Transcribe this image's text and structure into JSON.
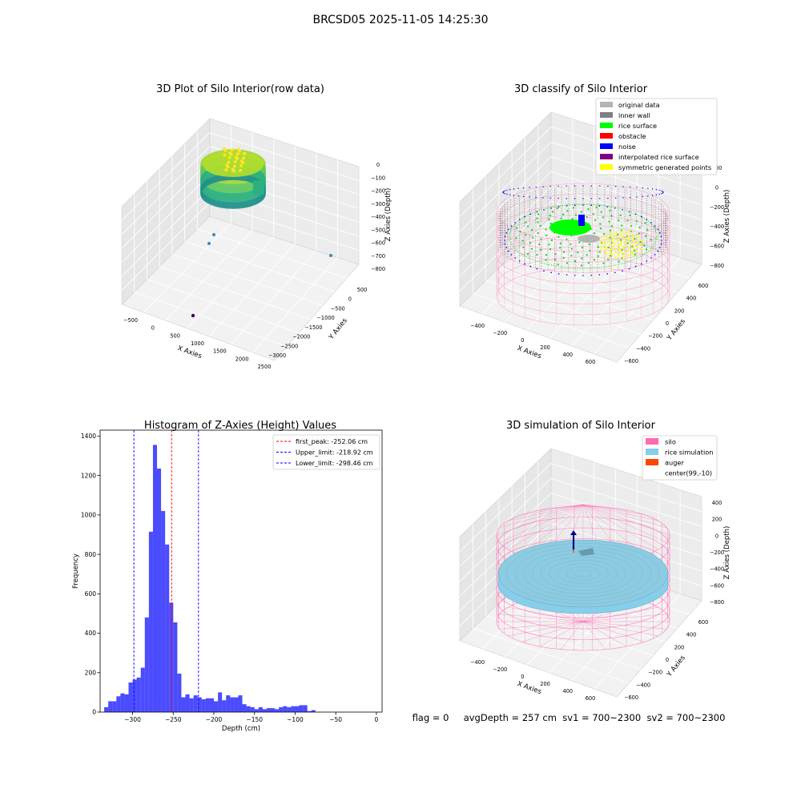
{
  "suptitle": "BRCSD05 2025-11-05 14:25:30",
  "panel1": {
    "title": "3D Plot of Silo Interior(row data)",
    "xlabel": "X Axies",
    "ylabel": "Y Axies",
    "zlabel": "Z Axies (Depth)",
    "xticks": [
      "−500",
      "0",
      "500",
      "1000",
      "1500",
      "2000",
      "2500"
    ],
    "yticks": [
      "500",
      "0",
      "−500",
      "−1000",
      "−1500",
      "−2000",
      "−2500",
      "−3000"
    ],
    "zticks": [
      "0",
      "−100",
      "−200",
      "−300",
      "−400",
      "−500",
      "−600",
      "−700",
      "−800"
    ]
  },
  "panel2": {
    "title": "3D classify of Silo Interior",
    "xlabel": "X Axies",
    "ylabel": "Y Axies",
    "zlabel": "Z Axies (Depth)",
    "xticks": [
      "−400",
      "−200",
      "0",
      "200",
      "400",
      "600"
    ],
    "yticks": [
      "600",
      "400",
      "200",
      "0",
      "−200",
      "−400",
      "−600"
    ],
    "zticks": [
      "200",
      "0",
      "−200",
      "−400",
      "−600",
      "−800"
    ],
    "legend": [
      {
        "label": "original data",
        "color": "#b4b4b4"
      },
      {
        "label": "inner wall",
        "color": "#808080"
      },
      {
        "label": "rice surface",
        "color": "#00ff00"
      },
      {
        "label": "obstacle",
        "color": "#ff0000"
      },
      {
        "label": "noise",
        "color": "#0000ff"
      },
      {
        "label": "interpolated rice surface",
        "color": "#800080"
      },
      {
        "label": "symmetric generated points",
        "color": "#ffff00"
      }
    ]
  },
  "panel4": {
    "title": "3D simulation of Silo Interior",
    "xlabel": "X Axies",
    "ylabel": "Y Axies",
    "zlabel": "Z Axies (Depth)",
    "xticks": [
      "−400",
      "−200",
      "0",
      "200",
      "400",
      "600"
    ],
    "yticks": [
      "600",
      "400",
      "200",
      "0",
      "−200",
      "−400",
      "−600"
    ],
    "zticks": [
      "400",
      "200",
      "0",
      "−200",
      "−400",
      "−600",
      "−800"
    ],
    "legend": [
      {
        "label": "silo",
        "color": "#ff69b4"
      },
      {
        "label": "rice simulation",
        "color": "#87ceeb"
      },
      {
        "label": "auger",
        "color": "#ff4500"
      },
      {
        "label": "center(99,-10)",
        "color": ""
      }
    ]
  },
  "footer": {
    "flag": "flag = 0",
    "avg": "avgDepth = 257 cm",
    "sv1": "sv1 = 700~2300",
    "sv2": "sv2 = 700~2300"
  },
  "chart_data": {
    "type": "bar",
    "title": "Histogram of Z-Axies (Height) Values",
    "xlabel": "Depth (cm)",
    "ylabel": "Frequency",
    "xlim": [
      -340,
      7
    ],
    "ylim": [
      0,
      1430
    ],
    "xticks": [
      -300,
      -250,
      -200,
      -150,
      -100,
      -50,
      0
    ],
    "xtick_labels": [
      "−300",
      "−250",
      "−200",
      "−150",
      "−100",
      "−50",
      "0"
    ],
    "yticks": [
      0,
      200,
      400,
      600,
      800,
      1000,
      1200,
      1400
    ],
    "bar_color": "#0000ff",
    "bin_start": -335,
    "bin_width": 5,
    "values": [
      25,
      55,
      55,
      80,
      95,
      90,
      150,
      165,
      175,
      225,
      480,
      915,
      1355,
      1235,
      1020,
      850,
      555,
      455,
      195,
      75,
      90,
      70,
      85,
      75,
      65,
      70,
      70,
      55,
      100,
      60,
      85,
      75,
      75,
      85,
      40,
      30,
      25,
      15,
      25,
      15,
      20,
      20,
      15,
      25,
      30,
      25,
      30,
      30,
      35,
      35,
      5,
      10
    ],
    "vlines": [
      {
        "x": -252.06,
        "color": "#ff0000",
        "label": "first_peak: -252.06 cm"
      },
      {
        "x": -218.92,
        "color": "#0000ff",
        "label": "Upper_limit: -218.92 cm"
      },
      {
        "x": -298.46,
        "color": "#0000ff",
        "label": "Lower_limit: -298.46 cm"
      }
    ],
    "legend_position": "upper right",
    "grid": false
  }
}
